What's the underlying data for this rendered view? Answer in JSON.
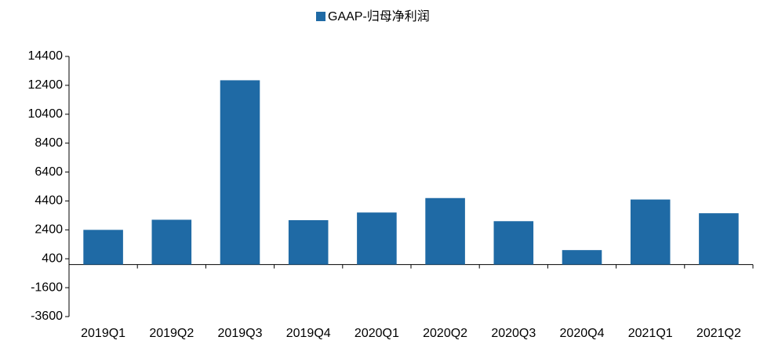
{
  "chart_data": {
    "type": "bar",
    "categories": [
      "2019Q1",
      "2019Q2",
      "2019Q3",
      "2019Q4",
      "2020Q1",
      "2020Q2",
      "2020Q3",
      "2020Q4",
      "2021Q1",
      "2021Q2"
    ],
    "series": [
      {
        "name": "GAAP-归母净利润",
        "color": "#1f6aa5",
        "values": [
          2400,
          3100,
          12750,
          3070,
          3600,
          4600,
          3000,
          1000,
          4500,
          3550
        ]
      }
    ],
    "ylim": [
      -3600,
      14400
    ],
    "yticks": [
      -3600,
      -1600,
      400,
      2400,
      4400,
      6400,
      8400,
      10400,
      12400,
      14400
    ],
    "grid": false,
    "legend": "top"
  }
}
